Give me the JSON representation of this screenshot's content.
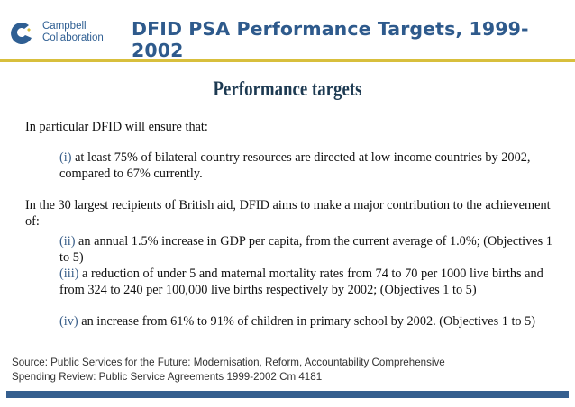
{
  "header": {
    "logo_line1": "Campbell",
    "logo_line2": "Collaboration",
    "title": "DFID PSA Performance Targets, 1999-2002"
  },
  "doc": {
    "heading": "Performance targets",
    "intro": "In particular DFID will ensure that:",
    "item1": {
      "label": "(i)",
      "text": " at least 75% of bilateral country resources are directed at low income countries by 2002, compared to 67% currently."
    },
    "para2": "In the 30 largest recipients of British aid, DFID aims to make a major contribution to the achievement of:",
    "item2": {
      "label": "(ii)",
      "text": " an annual 1.5% increase in GDP per capita, from the current average of 1.0%; (Objectives 1 to 5)"
    },
    "item3": {
      "label": "(iii)",
      "text": " a reduction of under 5 and maternal mortality rates from 74 to 70 per 1000 live births and from 324 to 240 per 100,000 live births respectively by 2002; (Objectives 1 to 5)"
    },
    "item4": {
      "label": "(iv)",
      "text": " an increase from 61% to 91% of children in primary school by 2002. (Objectives 1 to 5)"
    }
  },
  "footer": {
    "source_line1": "Source: Public Services for the Future: Modernisation, Reform, Accountability Comprehensive",
    "source_line2": "Spending Review: Public Service Agreements 1999-2002 Cm 4181"
  }
}
